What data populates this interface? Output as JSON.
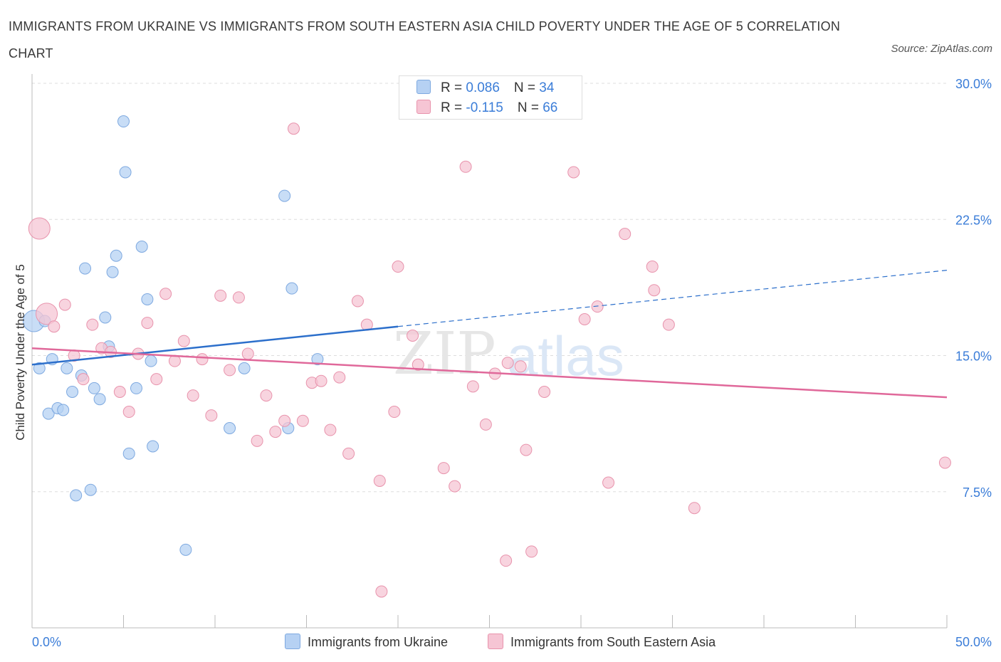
{
  "title": "IMMIGRANTS FROM UKRAINE VS IMMIGRANTS FROM SOUTH EASTERN ASIA CHILD POVERTY UNDER THE AGE OF 5 CORRELATION CHART",
  "source": "Source: ZipAtlas.com",
  "watermark": {
    "zip": "ZIP",
    "atlas": "atlas"
  },
  "legend_top": {
    "rows": [
      {
        "r_label": "R = ",
        "r_value": "0.086",
        "n_label": "N = ",
        "n_value": "34",
        "color": "#b6d1f3"
      },
      {
        "r_label": "R = ",
        "r_value": "-0.115",
        "n_label": "N = ",
        "n_value": "66",
        "color": "#f6c5d4"
      }
    ]
  },
  "legend_bottom": {
    "series1": "Immigrants from Ukraine",
    "series2": "Immigrants from South Eastern Asia"
  },
  "colors": {
    "blue_fill": "#b6d1f3",
    "blue_stroke": "#7ea9e0",
    "blue_line": "#2c6fcb",
    "pink_fill": "#f6c5d4",
    "pink_stroke": "#e893ac",
    "pink_line": "#e0689a",
    "axis_text": "#3b7dd8",
    "grid": "#dddddd"
  },
  "chart_data": {
    "type": "scatter",
    "title": "IMMIGRANTS FROM UKRAINE VS IMMIGRANTS FROM SOUTH EASTERN ASIA CHILD POVERTY UNDER THE AGE OF 5 CORRELATION CHART",
    "xlabel": "",
    "ylabel": "Child Poverty Under the Age of 5",
    "xlim": [
      0,
      50
    ],
    "ylim": [
      0,
      30
    ],
    "x_tick_labels": [
      {
        "value": 0,
        "label": "0.0%"
      },
      {
        "value": 50,
        "label": "50.0%"
      }
    ],
    "y_tick_labels": [
      {
        "value": 7.5,
        "label": "7.5%"
      },
      {
        "value": 15,
        "label": "15.0%"
      },
      {
        "value": 22.5,
        "label": "22.5%"
      },
      {
        "value": 30,
        "label": "30.0%"
      }
    ],
    "series": [
      {
        "name": "Immigrants from Ukraine",
        "R": 0.086,
        "N": 34,
        "trend": {
          "x_start": 0,
          "y_start": 14.5,
          "x_solid_end": 20,
          "y_solid_end": 16.6,
          "x_end": 50,
          "y_end": 19.7
        },
        "points": [
          {
            "x": 0.1,
            "y": 16.9,
            "big": true
          },
          {
            "x": 0.4,
            "y": 14.3
          },
          {
            "x": 0.7,
            "y": 16.9
          },
          {
            "x": 0.9,
            "y": 11.8
          },
          {
            "x": 1.1,
            "y": 14.8
          },
          {
            "x": 1.4,
            "y": 12.1
          },
          {
            "x": 1.7,
            "y": 12.0
          },
          {
            "x": 1.9,
            "y": 14.3
          },
          {
            "x": 2.2,
            "y": 13.0
          },
          {
            "x": 2.4,
            "y": 7.3
          },
          {
            "x": 2.7,
            "y": 13.9
          },
          {
            "x": 2.9,
            "y": 19.8
          },
          {
            "x": 3.2,
            "y": 7.6
          },
          {
            "x": 3.4,
            "y": 13.2
          },
          {
            "x": 3.7,
            "y": 12.6
          },
          {
            "x": 4.0,
            "y": 17.1
          },
          {
            "x": 4.2,
            "y": 15.5
          },
          {
            "x": 4.4,
            "y": 19.6
          },
          {
            "x": 4.6,
            "y": 20.5
          },
          {
            "x": 5.0,
            "y": 27.9
          },
          {
            "x": 5.1,
            "y": 25.1
          },
          {
            "x": 5.3,
            "y": 9.6
          },
          {
            "x": 5.7,
            "y": 13.2
          },
          {
            "x": 6.0,
            "y": 21.0
          },
          {
            "x": 6.3,
            "y": 18.1
          },
          {
            "x": 6.5,
            "y": 14.7
          },
          {
            "x": 6.6,
            "y": 10.0
          },
          {
            "x": 8.4,
            "y": 4.3
          },
          {
            "x": 10.8,
            "y": 11.0
          },
          {
            "x": 11.6,
            "y": 14.3
          },
          {
            "x": 13.8,
            "y": 23.8
          },
          {
            "x": 14.0,
            "y": 11.0
          },
          {
            "x": 14.2,
            "y": 18.7
          },
          {
            "x": 15.6,
            "y": 14.8
          }
        ]
      },
      {
        "name": "Immigrants from South Eastern Asia",
        "R": -0.115,
        "N": 66,
        "trend": {
          "x_start": 0,
          "y_start": 15.4,
          "x_end": 50,
          "y_end": 12.7
        },
        "points": [
          {
            "x": 0.4,
            "y": 22.0,
            "big": true
          },
          {
            "x": 0.8,
            "y": 17.3,
            "big": true
          },
          {
            "x": 1.2,
            "y": 16.6
          },
          {
            "x": 1.8,
            "y": 17.8
          },
          {
            "x": 2.3,
            "y": 15.0
          },
          {
            "x": 2.8,
            "y": 13.7
          },
          {
            "x": 3.3,
            "y": 16.7
          },
          {
            "x": 3.8,
            "y": 15.4
          },
          {
            "x": 4.3,
            "y": 15.2
          },
          {
            "x": 4.8,
            "y": 13.0
          },
          {
            "x": 5.3,
            "y": 11.9
          },
          {
            "x": 5.8,
            "y": 15.1
          },
          {
            "x": 6.3,
            "y": 16.8
          },
          {
            "x": 6.8,
            "y": 13.7
          },
          {
            "x": 7.3,
            "y": 18.4
          },
          {
            "x": 7.8,
            "y": 14.7
          },
          {
            "x": 8.3,
            "y": 15.8
          },
          {
            "x": 8.8,
            "y": 12.8
          },
          {
            "x": 9.3,
            "y": 14.8
          },
          {
            "x": 9.8,
            "y": 11.7
          },
          {
            "x": 10.3,
            "y": 18.3
          },
          {
            "x": 10.8,
            "y": 14.2
          },
          {
            "x": 11.3,
            "y": 18.2
          },
          {
            "x": 11.8,
            "y": 15.1
          },
          {
            "x": 12.3,
            "y": 10.3
          },
          {
            "x": 12.8,
            "y": 12.8
          },
          {
            "x": 13.3,
            "y": 10.8
          },
          {
            "x": 13.8,
            "y": 11.4
          },
          {
            "x": 14.3,
            "y": 27.5
          },
          {
            "x": 14.8,
            "y": 11.4
          },
          {
            "x": 15.3,
            "y": 13.5
          },
          {
            "x": 15.8,
            "y": 13.6
          },
          {
            "x": 16.3,
            "y": 10.9
          },
          {
            "x": 16.8,
            "y": 13.8
          },
          {
            "x": 17.3,
            "y": 9.6
          },
          {
            "x": 17.8,
            "y": 18.0
          },
          {
            "x": 18.3,
            "y": 16.7
          },
          {
            "x": 19.0,
            "y": 8.1
          },
          {
            "x": 19.1,
            "y": 2.0
          },
          {
            "x": 19.8,
            "y": 11.9
          },
          {
            "x": 20.0,
            "y": 19.9
          },
          {
            "x": 20.8,
            "y": 16.1
          },
          {
            "x": 21.1,
            "y": 14.5
          },
          {
            "x": 22.5,
            "y": 8.8
          },
          {
            "x": 23.1,
            "y": 7.8
          },
          {
            "x": 23.7,
            "y": 25.4
          },
          {
            "x": 24.1,
            "y": 13.3
          },
          {
            "x": 24.8,
            "y": 11.2
          },
          {
            "x": 25.3,
            "y": 14.0
          },
          {
            "x": 25.9,
            "y": 3.7
          },
          {
            "x": 26.0,
            "y": 14.6
          },
          {
            "x": 26.5,
            "y": 28.5
          },
          {
            "x": 26.7,
            "y": 14.4
          },
          {
            "x": 27.0,
            "y": 9.8
          },
          {
            "x": 27.3,
            "y": 4.2
          },
          {
            "x": 28.0,
            "y": 13.0
          },
          {
            "x": 29.6,
            "y": 25.1
          },
          {
            "x": 30.2,
            "y": 17.0
          },
          {
            "x": 30.9,
            "y": 17.7
          },
          {
            "x": 31.5,
            "y": 8.0
          },
          {
            "x": 32.4,
            "y": 21.7
          },
          {
            "x": 33.9,
            "y": 19.9
          },
          {
            "x": 34.0,
            "y": 18.6
          },
          {
            "x": 34.8,
            "y": 16.7
          },
          {
            "x": 36.2,
            "y": 6.6
          },
          {
            "x": 49.9,
            "y": 9.1
          }
        ]
      }
    ]
  }
}
